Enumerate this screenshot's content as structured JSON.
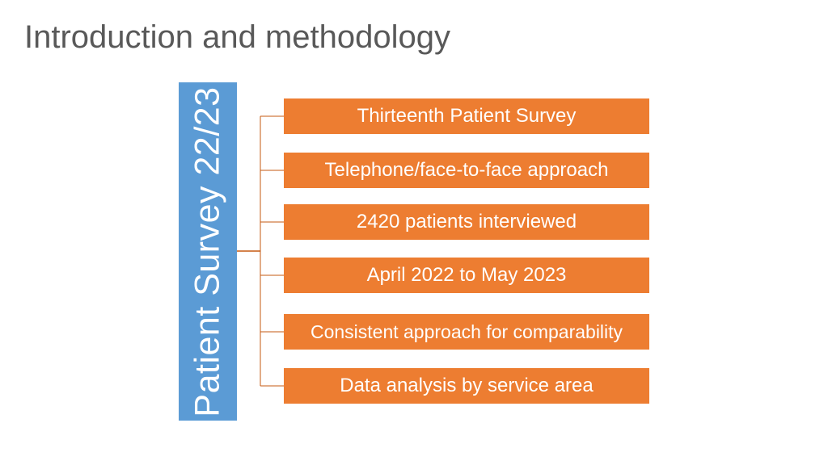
{
  "slide": {
    "title": "Introduction and methodology"
  },
  "diagram": {
    "root_label": "Patient Survey 22/23",
    "root_color": "#5b9bd5",
    "item_color": "#ed7d31",
    "connector_color": "#c55a11",
    "items": [
      {
        "label": "Thirteenth Patient Survey"
      },
      {
        "label": "Telephone/face-to-face approach"
      },
      {
        "label": "2420 patients interviewed"
      },
      {
        "label": "April 2022 to May 2023"
      },
      {
        "label": "Consistent approach for comparability"
      },
      {
        "label": "Data analysis by service area"
      }
    ]
  }
}
